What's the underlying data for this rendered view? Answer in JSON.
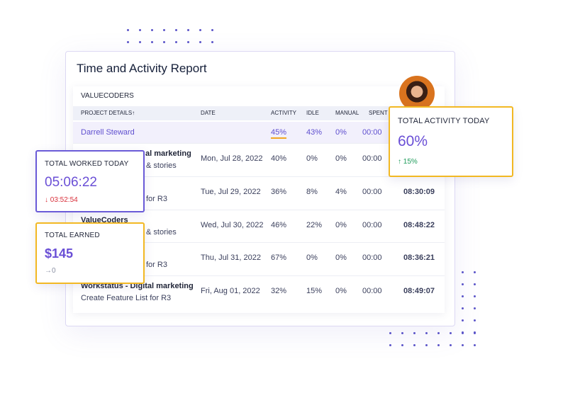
{
  "header": {
    "title": "Time and Activity Report"
  },
  "table": {
    "company": "VALUECODERS",
    "columns": [
      "PROJECT DETAILS↑",
      "DATE",
      "ACTIVITY",
      "IDLE",
      "MANUAL",
      "SPENT"
    ],
    "highlight": {
      "name": "Darrell Steward",
      "activity": "45%",
      "idle": "43%",
      "manual": "0%",
      "time": "00:00"
    },
    "rows": [
      {
        "project": "al marketing",
        "task": "& stories",
        "date": "Mon, Jul 28, 2022",
        "activity": "40%",
        "idle": "0%",
        "manual": "0%",
        "time": "00:00"
      },
      {
        "task": "for R3",
        "date": "Tue, Jul 29, 2022",
        "activity": "36%",
        "idle": "8%",
        "manual": "4%",
        "time": "00:00",
        "spent": "08:30:09"
      },
      {
        "project": "ValueCoders",
        "task": "& stories",
        "date": "Wed, Jul 30, 2022",
        "activity": "46%",
        "idle": "22%",
        "manual": "0%",
        "time": "00:00",
        "spent": "08:48:22"
      },
      {
        "task": "for R3",
        "date": "Thu, Jul 31, 2022",
        "activity": "67%",
        "idle": "0%",
        "manual": "0%",
        "time": "00:00",
        "spent": "08:36:21"
      },
      {
        "project": "Workstatus - Digital marketing",
        "task": "Create Feature List for R3",
        "date": "Fri, Aug 01, 2022",
        "activity": "32%",
        "idle": "15%",
        "manual": "0%",
        "time": "00:00",
        "spent": "08:49:07"
      }
    ]
  },
  "cards": {
    "worked": {
      "title": "TOTAL WORKED TODAY",
      "value": "05:06:22",
      "change": "↓ 03:52:54"
    },
    "earned": {
      "title": "TOTAL EARNED",
      "value": "$145",
      "change": "→0"
    },
    "activity": {
      "title": "TOTAL ACTIVITY TODAY",
      "value": "60%",
      "change": "↑ 15%"
    }
  }
}
